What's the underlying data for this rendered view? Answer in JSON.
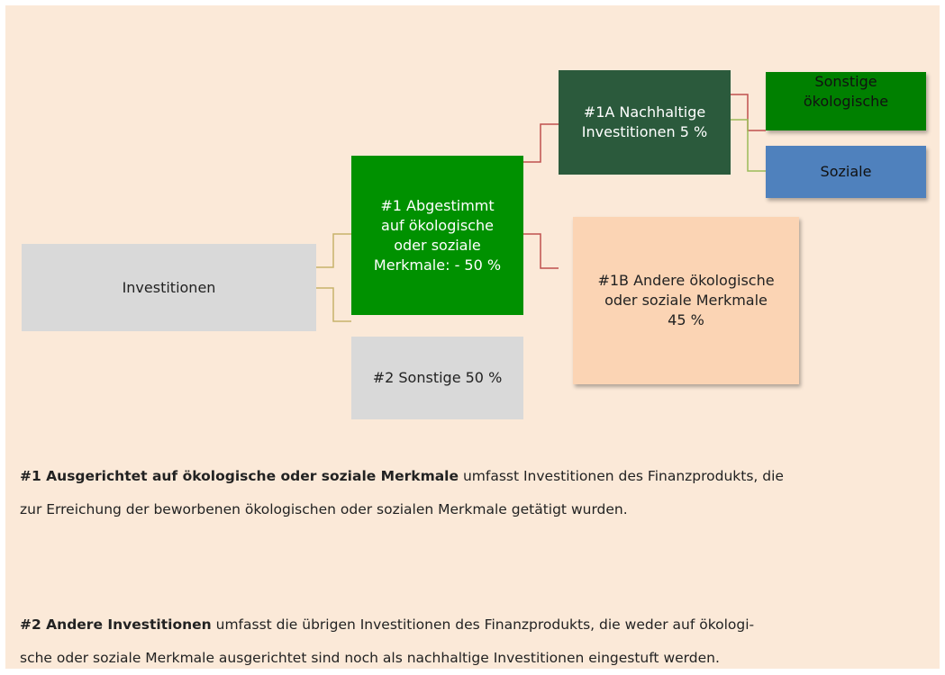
{
  "nodes": [
    {
      "lines": [
        "Investitionen"
      ]
    },
    {
      "lines": [
        "#1 Abgestimmt",
        "auf ökologische",
        "oder soziale",
        "Merkmale: - 50 %"
      ]
    },
    {
      "lines": [
        "#2 Sonstige 50 %"
      ]
    },
    {
      "lines": [
        "#1A Nachhaltige",
        "Investitionen 5 %"
      ]
    },
    {
      "lines": [
        "#1B Andere ökologische",
        "oder soziale Merkmale",
        "45 %"
      ]
    },
    {
      "lines": [
        "Sonstige",
        "ökologische"
      ]
    },
    {
      "lines": [
        "Soziale"
      ]
    }
  ],
  "paragraphs": [
    {
      "bold": "#1 Ausgerichtet auf ökologische oder soziale Merkmale",
      "lines": [
        "umfasst Investitionen des Finanzprodukts, die",
        "zur Erreichung der beworbenen ökologischen oder sozialen Merkmale getätigt wurden."
      ]
    },
    {
      "bold": "#2 Andere Investitionen",
      "lines": [
        "umfasst die übrigen Investitionen des Finanzprodukts, die weder auf ökologi-",
        "sche oder soziale Merkmale ausgerichtet sind noch als nachhaltige Investitionen eingestuft werden."
      ]
    }
  ]
}
